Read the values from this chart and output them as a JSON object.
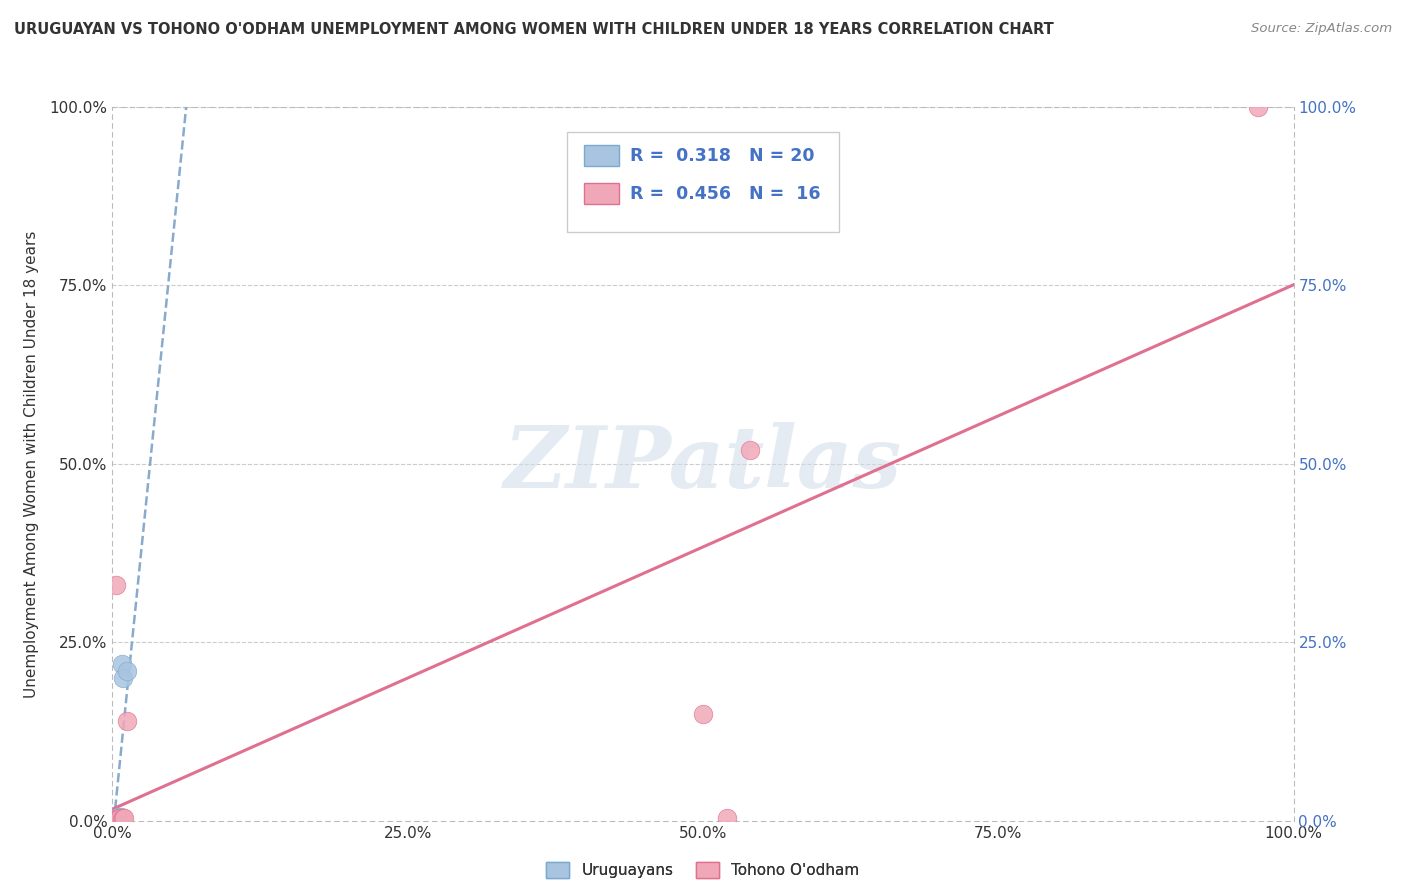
{
  "title": "URUGUAYAN VS TOHONO O'ODHAM UNEMPLOYMENT AMONG WOMEN WITH CHILDREN UNDER 18 YEARS CORRELATION CHART",
  "source": "Source: ZipAtlas.com",
  "ylabel": "Unemployment Among Women with Children Under 18 years",
  "xtick_labels": [
    "0.0%",
    "25.0%",
    "50.0%",
    "75.0%",
    "100.0%"
  ],
  "xtick_values": [
    0,
    0.25,
    0.5,
    0.75,
    1.0
  ],
  "ytick_labels": [
    "0.0%",
    "25.0%",
    "50.0%",
    "75.0%",
    "100.0%"
  ],
  "ytick_values": [
    0,
    0.25,
    0.5,
    0.75,
    1.0
  ],
  "watermark_text": "ZIPatlas",
  "legend_label1": "Uruguayans",
  "legend_label2": "Tohono O'odham",
  "R1": 0.318,
  "N1": 20,
  "R2": 0.456,
  "N2": 16,
  "color1": "#a8c4e0",
  "color1_edge": "#7aaace",
  "color2": "#f0a8b8",
  "color2_edge": "#e07090",
  "line1_color": "#88aacc",
  "line2_color": "#e07090",
  "uruguayan_x": [
    0.0,
    0.0,
    0.0,
    0.0,
    0.0,
    0.0,
    0.0,
    0.0,
    0.002,
    0.002,
    0.003,
    0.003,
    0.003,
    0.005,
    0.005,
    0.006,
    0.007,
    0.008,
    0.009,
    0.012
  ],
  "uruguayan_y": [
    0.0,
    0.0,
    0.0,
    0.0,
    0.0,
    0.0,
    0.002,
    0.003,
    0.0,
    0.002,
    0.0,
    0.002,
    0.004,
    0.002,
    0.005,
    0.003,
    0.005,
    0.22,
    0.2,
    0.21
  ],
  "tohono_x": [
    0.0,
    0.0,
    0.0,
    0.002,
    0.003,
    0.004,
    0.005,
    0.006,
    0.008,
    0.009,
    0.01,
    0.012,
    0.5,
    0.52,
    0.54,
    0.97
  ],
  "tohono_y": [
    0.0,
    0.0,
    0.002,
    0.0,
    0.33,
    0.002,
    0.002,
    0.003,
    0.002,
    0.003,
    0.004,
    0.14,
    0.15,
    0.003,
    0.52,
    1.0
  ],
  "background_color": "#ffffff",
  "grid_color": "#cccccc",
  "grid_linestyle": "--",
  "spine_linestyle": "--"
}
